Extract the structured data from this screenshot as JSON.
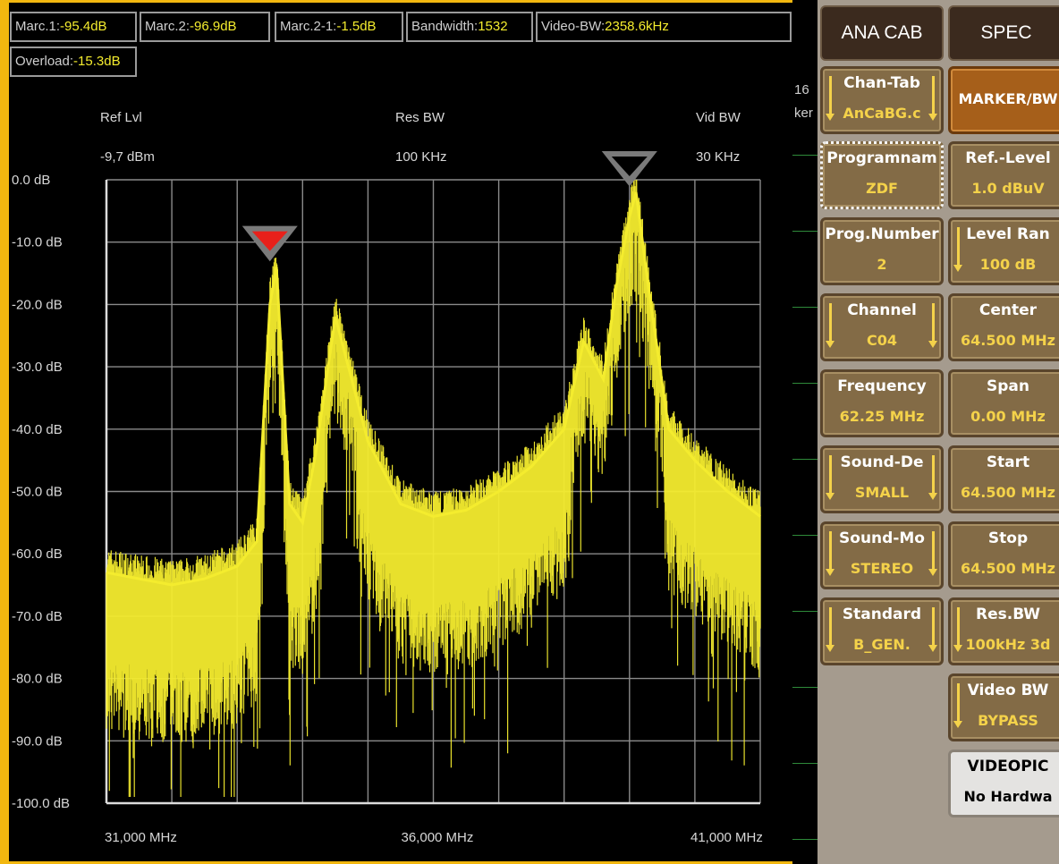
{
  "status_bar": {
    "marc1_label": "Marc.1:",
    "marc1_value": "-95.4dB",
    "marc2_label": "Marc.2:",
    "marc2_value": "-96.9dB",
    "marc21_label": "Marc.2-1:",
    "marc21_value": "-1.5dB",
    "bandwidth_label": "Bandwidth:",
    "bandwidth_value": "1532",
    "videobw_label": "Video-BW:",
    "videobw_value": "2358.6kHz",
    "overload_label": "Overload:",
    "overload_value": "-15.3dB"
  },
  "plot_header": {
    "ref_lvl_label": "Ref Lvl",
    "ref_lvl_value": "-9,7 dBm",
    "res_bw_label": "Res BW",
    "res_bw_value": "100 KHz",
    "vid_bw_label": "Vid BW",
    "vid_bw_value": "30 KHz"
  },
  "chart_data": {
    "type": "line",
    "y_ticks": [
      "0.0 dB",
      "-10.0 dB",
      "-20.0 dB",
      "-30.0 dB",
      "-40.0 dB",
      "-50.0 dB",
      "-60.0 dB",
      "-70.0 dB",
      "-80.0 dB",
      "-90.0 dB",
      "-100.0 dB"
    ],
    "x_ticks": [
      "31,000 MHz",
      "36,000 MHz",
      "41,000 MHz"
    ],
    "ylim": [
      -100,
      0
    ],
    "xlim": [
      31.0,
      41.0
    ],
    "grid": true,
    "series": [
      {
        "color": "#F4EC2E",
        "x": [
          31.0,
          31.5,
          32.0,
          32.5,
          33.0,
          33.3,
          33.5,
          33.6,
          33.8,
          34.0,
          34.2,
          34.5,
          35.0,
          35.5,
          36.0,
          36.5,
          37.0,
          37.5,
          38.0,
          38.3,
          38.6,
          38.8,
          39.0,
          39.1,
          39.3,
          39.6,
          40.0,
          40.5,
          41.0
        ],
        "y": [
          -63,
          -64,
          -65,
          -64,
          -62,
          -58,
          -20,
          -14,
          -52,
          -55,
          -44,
          -22,
          -42,
          -52,
          -54,
          -53,
          -50,
          -46,
          -40,
          -26,
          -32,
          -17,
          -6,
          -2,
          -18,
          -40,
          -45,
          -50,
          -54
        ]
      }
    ],
    "markers": [
      {
        "name": "Marc.1",
        "x": 33.5,
        "y": -14,
        "color": "#E8201A"
      },
      {
        "name": "Marc.2",
        "x": 39.0,
        "y": -2,
        "color": "none"
      }
    ]
  },
  "mid_strip": {
    "text1": "16",
    "text2": "ker"
  },
  "softkeys": {
    "left_col": [
      {
        "l1": "Chan-Tab",
        "l2": "AnCaBG.c"
      },
      {
        "l1": "Programnam",
        "l2": "ZDF"
      },
      {
        "l1": "Prog.Number",
        "l2": "2"
      },
      {
        "l1": "Channel",
        "l2": "C04"
      },
      {
        "l1": "Frequency",
        "l2": "62.25 MHz"
      },
      {
        "l1": "Sound-De",
        "l2": "SMALL"
      },
      {
        "l1": "Sound-Mo",
        "l2": "STEREO"
      },
      {
        "l1": "Standard",
        "l2": "B_GEN."
      }
    ],
    "right_col": [
      {
        "l1": "MARKER/BW",
        "l2": ""
      },
      {
        "l1": "Ref.-Level",
        "l2": "1.0 dBuV"
      },
      {
        "l1": "Level Ran",
        "l2": "100 dB"
      },
      {
        "l1": "Center",
        "l2": "64.500 MHz"
      },
      {
        "l1": "Span",
        "l2": "0.00 MHz"
      },
      {
        "l1": "Start",
        "l2": "64.500 MHz"
      },
      {
        "l1": "Stop",
        "l2": "64.500 MHz"
      },
      {
        "l1": "Res.BW",
        "l2": "100kHz 3d"
      },
      {
        "l1": "Video BW",
        "l2": "BYPASS"
      },
      {
        "l1": "VIDEOPIC",
        "l2": "No Hardwa"
      }
    ],
    "tab_ana_cab": "ANA CAB",
    "tab_spec": "SPEC"
  }
}
